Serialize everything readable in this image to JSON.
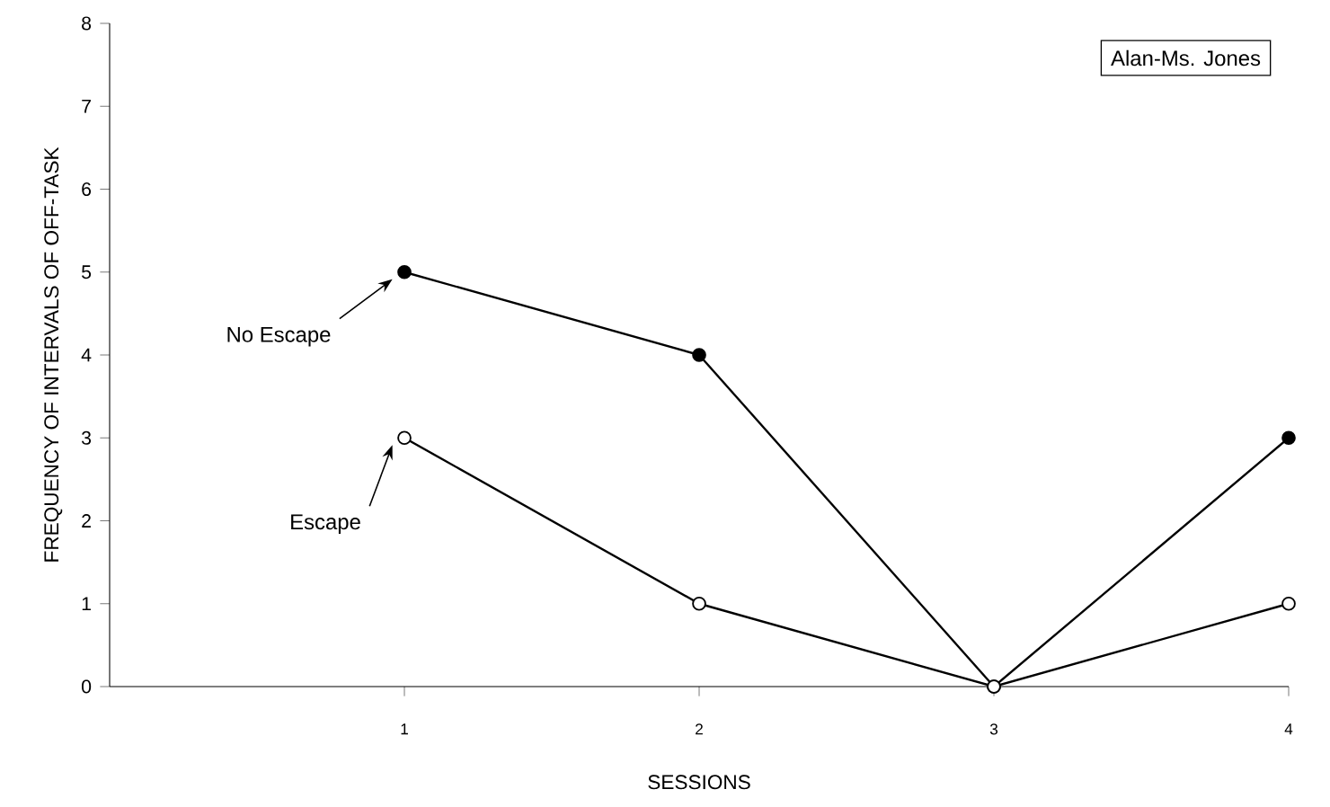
{
  "chart_data": {
    "type": "line",
    "xlabel": "SESSIONS",
    "ylabel": "FREQUENCY OF INTERVALS OF OFF-TASK",
    "x": [
      1,
      2,
      3,
      4
    ],
    "series": [
      {
        "name": "No Escape",
        "color": "#000000",
        "values": [
          5,
          4,
          0,
          3
        ]
      },
      {
        "name": "Escape",
        "color": "#000000",
        "values": [
          3,
          1,
          0,
          1
        ]
      }
    ],
    "xlim": [
      0,
      4
    ],
    "ylim": [
      0,
      8
    ],
    "xticks": [
      1,
      2,
      3,
      4
    ],
    "yticks": [
      0,
      1,
      2,
      3,
      4,
      5,
      6,
      7,
      8
    ],
    "annotations": [
      "Alan-Ms. Jones"
    ],
    "grid": false,
    "legend": false,
    "marker": "circle",
    "line_style": "solid"
  }
}
